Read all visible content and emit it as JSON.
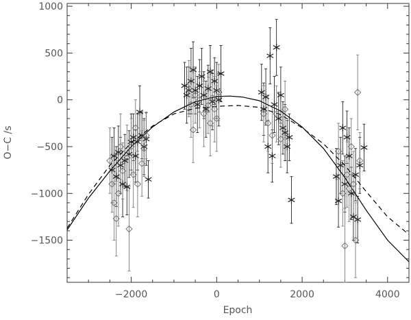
{
  "chart_data": {
    "type": "scatter",
    "xlabel": "Epoch",
    "ylabel": "O−C /s",
    "xlim": [
      -3500,
      4500
    ],
    "ylim": [
      -1950,
      1030
    ],
    "xticks": [
      -2000,
      0,
      2000,
      4000
    ],
    "xtick_labels": [
      "−2000",
      "0",
      "2000",
      "4000"
    ],
    "yticks": [
      1000,
      500,
      0,
      -500,
      -1000,
      -1500
    ],
    "ytick_labels": [
      "1000",
      "500",
      "0",
      "−500",
      "−1000",
      "−1500"
    ],
    "grid": false,
    "colors": {
      "asterisk": "#222222",
      "diamond": "#777777",
      "solid_curve": "#000000",
      "dashed_curve": "#000000"
    },
    "series": [
      {
        "marker": "asterisk",
        "points": [
          [
            -2450,
            -750,
            350
          ],
          [
            -2400,
            -600,
            300
          ],
          [
            -2350,
            -820,
            320
          ],
          [
            -2300,
            -560,
            280
          ],
          [
            -2250,
            -700,
            300
          ],
          [
            -2200,
            -900,
            350
          ],
          [
            -2150,
            -650,
            280
          ],
          [
            -2100,
            -930,
            300
          ],
          [
            -2050,
            -580,
            250
          ],
          [
            -2000,
            -450,
            300
          ],
          [
            -1950,
            -400,
            250
          ],
          [
            -1900,
            -600,
            280
          ],
          [
            -1850,
            -450,
            300
          ],
          [
            -1800,
            -130,
            280
          ],
          [
            -1750,
            -380,
            250
          ],
          [
            -1700,
            -500,
            300
          ],
          [
            -1650,
            -420,
            280
          ],
          [
            -1600,
            -850,
            200
          ],
          [
            -750,
            150,
            250
          ],
          [
            -700,
            50,
            300
          ],
          [
            -650,
            100,
            250
          ],
          [
            -600,
            200,
            350
          ],
          [
            -550,
            320,
            300
          ],
          [
            -500,
            100,
            250
          ],
          [
            -450,
            -50,
            300
          ],
          [
            -400,
            150,
            280
          ],
          [
            -350,
            250,
            300
          ],
          [
            -300,
            50,
            250
          ],
          [
            -250,
            -100,
            300
          ],
          [
            -200,
            120,
            250
          ],
          [
            -150,
            300,
            280
          ],
          [
            -100,
            -20,
            300
          ],
          [
            -50,
            200,
            250
          ],
          [
            0,
            100,
            300
          ],
          [
            50,
            0,
            280
          ],
          [
            100,
            280,
            300
          ],
          [
            1050,
            80,
            300
          ],
          [
            1100,
            -100,
            280
          ],
          [
            1150,
            30,
            300
          ],
          [
            1200,
            -500,
            280
          ],
          [
            1250,
            470,
            300
          ],
          [
            1300,
            -600,
            280
          ],
          [
            1350,
            -50,
            300
          ],
          [
            1400,
            560,
            300
          ],
          [
            1450,
            -200,
            280
          ],
          [
            1500,
            50,
            300
          ],
          [
            1550,
            -300,
            280
          ],
          [
            1600,
            -350,
            300
          ],
          [
            1650,
            -500,
            280
          ],
          [
            1700,
            -400,
            250
          ],
          [
            1750,
            -1070,
            250
          ],
          [
            2800,
            -820,
            300
          ],
          [
            2850,
            -1080,
            280
          ],
          [
            2900,
            -700,
            300
          ],
          [
            2950,
            -300,
            280
          ],
          [
            3000,
            -900,
            300
          ],
          [
            3050,
            -400,
            280
          ],
          [
            3100,
            -600,
            300
          ],
          [
            3150,
            -1000,
            280
          ],
          [
            3200,
            -1250,
            250
          ],
          [
            3250,
            -800,
            280
          ],
          [
            3300,
            -1280,
            250
          ],
          [
            3350,
            -700,
            300
          ],
          [
            3450,
            -510,
            250
          ]
        ]
      },
      {
        "marker": "diamond",
        "points": [
          [
            -2500,
            -650,
            350
          ],
          [
            -2450,
            -900,
            300
          ],
          [
            -2400,
            -1100,
            400
          ],
          [
            -2350,
            -1270,
            400
          ],
          [
            -2300,
            -1000,
            350
          ],
          [
            -2250,
            -500,
            350
          ],
          [
            -2200,
            -760,
            300
          ],
          [
            -2100,
            -620,
            350
          ],
          [
            -2050,
            -1380,
            450
          ],
          [
            -2000,
            -500,
            300
          ],
          [
            -1950,
            -800,
            350
          ],
          [
            -1900,
            -300,
            300
          ],
          [
            -1850,
            -900,
            350
          ],
          [
            -1750,
            -680,
            350
          ],
          [
            -1700,
            -520,
            300
          ],
          [
            -1650,
            -380,
            250
          ],
          [
            -650,
            120,
            300
          ],
          [
            -600,
            -50,
            350
          ],
          [
            -550,
            -320,
            350
          ],
          [
            -500,
            50,
            300
          ],
          [
            -400,
            0,
            300
          ],
          [
            -300,
            -150,
            350
          ],
          [
            -200,
            -60,
            300
          ],
          [
            -150,
            -250,
            350
          ],
          [
            -100,
            20,
            300
          ],
          [
            -50,
            -100,
            350
          ],
          [
            0,
            -200,
            350
          ],
          [
            50,
            80,
            300
          ],
          [
            1100,
            -150,
            300
          ],
          [
            1200,
            -250,
            300
          ],
          [
            1300,
            -380,
            300
          ],
          [
            1400,
            -150,
            300
          ],
          [
            1500,
            -420,
            300
          ],
          [
            1600,
            -100,
            300
          ],
          [
            2850,
            -550,
            300
          ],
          [
            2950,
            -1000,
            350
          ],
          [
            3000,
            -1560,
            400
          ],
          [
            3050,
            -800,
            350
          ],
          [
            3100,
            -950,
            350
          ],
          [
            3150,
            -500,
            300
          ],
          [
            3200,
            -900,
            350
          ],
          [
            3250,
            -1500,
            400
          ],
          [
            3300,
            80,
            400
          ],
          [
            3350,
            -650,
            300
          ]
        ]
      },
      {
        "marker": "solid_curve",
        "points": [
          [
            -3500,
            -1390
          ],
          [
            -3000,
            -1050
          ],
          [
            -2500,
            -760
          ],
          [
            -2000,
            -500
          ],
          [
            -1500,
            -290
          ],
          [
            -1000,
            -130
          ],
          [
            -500,
            -20
          ],
          [
            0,
            35
          ],
          [
            300,
            40
          ],
          [
            600,
            30
          ],
          [
            1000,
            -10
          ],
          [
            1500,
            -120
          ],
          [
            2000,
            -290
          ],
          [
            2500,
            -520
          ],
          [
            3000,
            -830
          ],
          [
            3500,
            -1180
          ],
          [
            4000,
            -1500
          ],
          [
            4500,
            -1730
          ]
        ]
      },
      {
        "marker": "dashed_curve",
        "points": [
          [
            -3500,
            -1370
          ],
          [
            -3000,
            -1010
          ],
          [
            -2500,
            -700
          ],
          [
            -2000,
            -460
          ],
          [
            -1500,
            -280
          ],
          [
            -1000,
            -150
          ],
          [
            -500,
            -90
          ],
          [
            0,
            -70
          ],
          [
            500,
            -60
          ],
          [
            1000,
            -80
          ],
          [
            1500,
            -160
          ],
          [
            2000,
            -300
          ],
          [
            2500,
            -470
          ],
          [
            3000,
            -700
          ],
          [
            3500,
            -980
          ],
          [
            4000,
            -1250
          ],
          [
            4500,
            -1440
          ]
        ]
      }
    ]
  }
}
